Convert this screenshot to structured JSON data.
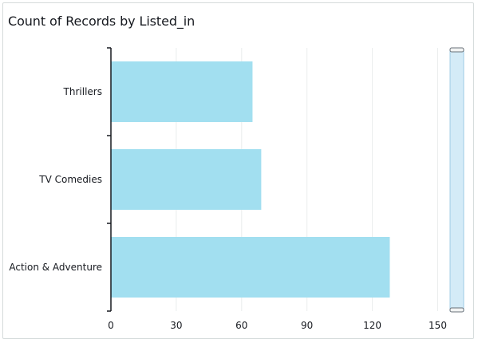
{
  "chart_data": {
    "type": "bar",
    "orientation": "horizontal",
    "title": "Count of Records by Listed_in",
    "categories": [
      "Thrillers",
      "TV Comedies",
      "Action & Adventure"
    ],
    "values": [
      65,
      69,
      128
    ],
    "xlim": [
      0,
      160
    ],
    "xticks": [
      0,
      30,
      60,
      90,
      120,
      150
    ],
    "grid": true,
    "bar_color": "#a2dff0",
    "scrollbar_color": "#d4ebf7"
  }
}
